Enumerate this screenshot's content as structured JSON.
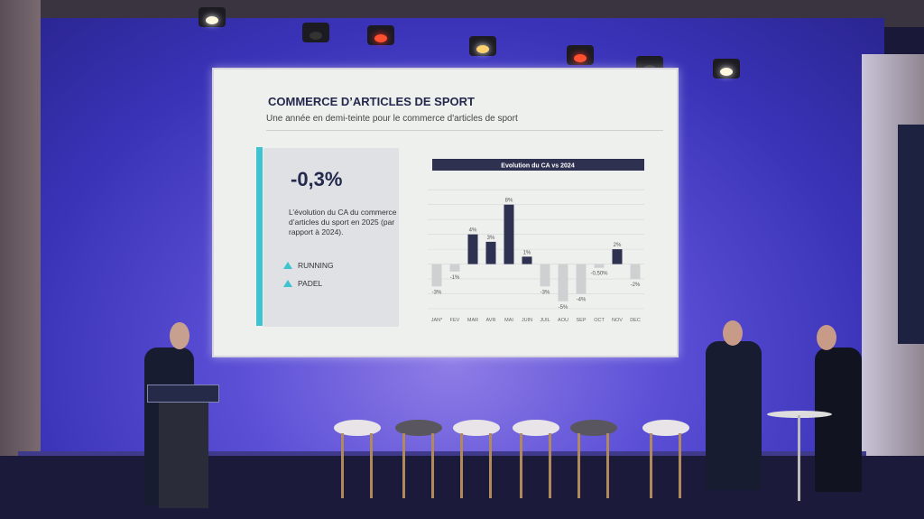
{
  "slide": {
    "title": "COMMERCE D’ARTICLES DE SPORT",
    "subtitle": "Une année en demi-teinte pour le commerce d'articles de sport",
    "kpi": {
      "value": "-0,3%",
      "description": "L’évolution du CA du commerce d’articles du sport en 2025 (par rapport à 2024).",
      "tags": [
        "RUNNING",
        "PADEL"
      ],
      "tag_icon": "triangle-up-icon",
      "accent_color": "#3fc3d0"
    }
  },
  "chart_data": {
    "type": "bar",
    "title": "Evolution du CA vs 2024",
    "categories": [
      "JAN*",
      "FEV",
      "MAR",
      "AVR",
      "MAI",
      "JUIN",
      "JUIL",
      "AOU",
      "SEP",
      "OCT",
      "NOV",
      "DEC"
    ],
    "values": [
      -3,
      -1,
      4,
      3,
      8,
      1,
      -3,
      -5,
      -4,
      -0.5,
      2,
      -2
    ],
    "data_labels": [
      "-3%",
      "-1%",
      "4%",
      "3%",
      "8%",
      "1%",
      "-3%",
      "-5%",
      "-4%",
      "-0,50%",
      "2%",
      "-2%"
    ],
    "ylim": [
      -6,
      11
    ],
    "grid": true,
    "colors": {
      "positive": "#2e3150",
      "negative": "#cfd0d2",
      "title_bg": "#2e3150"
    }
  }
}
